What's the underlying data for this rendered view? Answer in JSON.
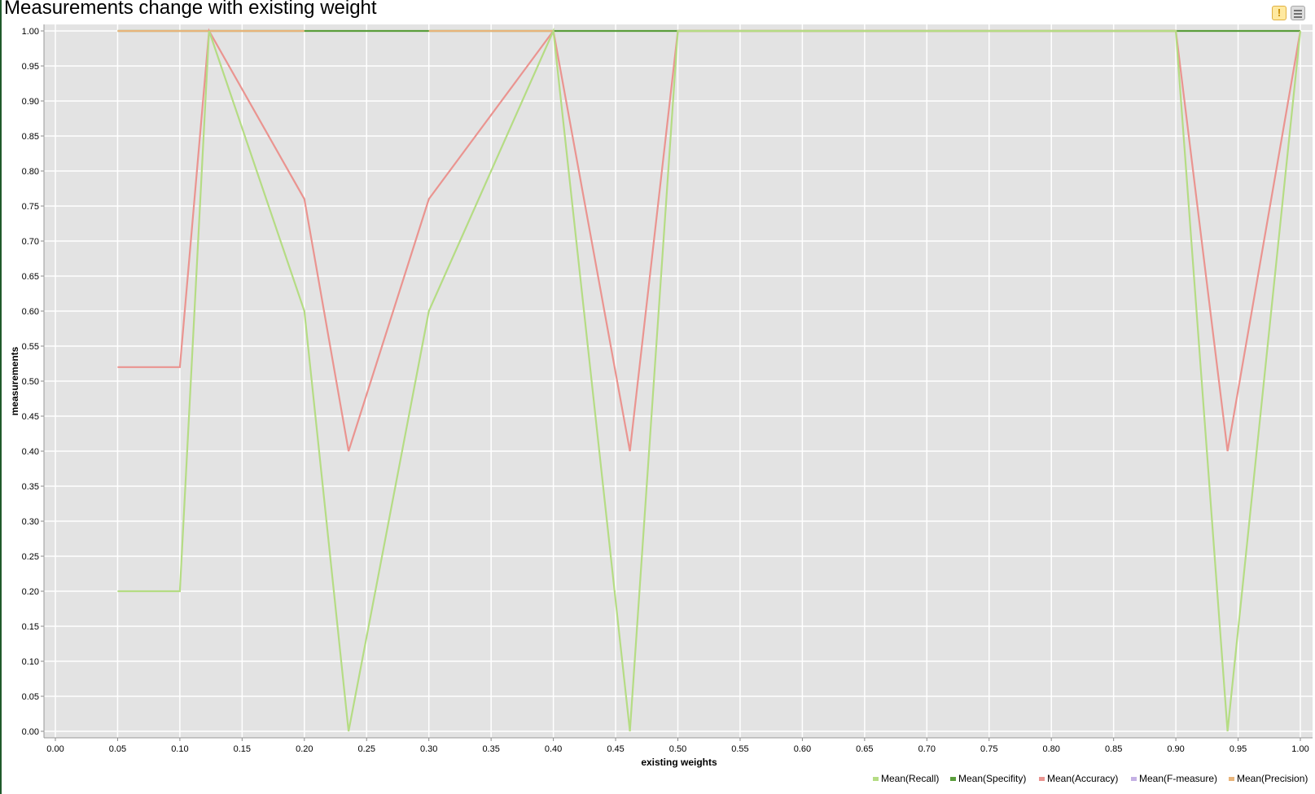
{
  "chart_data": {
    "type": "line",
    "title": "Measurements change with existing weight",
    "xlabel": "existing weights",
    "ylabel": "measurements",
    "xlim": [
      0.0,
      1.0
    ],
    "ylim": [
      0.0,
      1.0
    ],
    "x_ticks": [
      "0.00",
      "0.05",
      "0.10",
      "0.15",
      "0.20",
      "0.25",
      "0.30",
      "0.35",
      "0.40",
      "0.45",
      "0.50",
      "0.55",
      "0.60",
      "0.65",
      "0.70",
      "0.75",
      "0.80",
      "0.85",
      "0.90",
      "0.95",
      "1.00"
    ],
    "y_ticks": [
      "0.00",
      "0.05",
      "0.10",
      "0.15",
      "0.20",
      "0.25",
      "0.30",
      "0.35",
      "0.40",
      "0.45",
      "0.50",
      "0.55",
      "0.60",
      "0.65",
      "0.70",
      "0.75",
      "0.80",
      "0.85",
      "0.90",
      "0.95",
      "1.00"
    ],
    "grid": true,
    "legend_position": "bottom-right",
    "series": [
      {
        "name": "Mean(Recall)",
        "color": "#b5dc84",
        "points": [
          [
            0.05,
            0.2
          ],
          [
            0.1,
            0.2
          ],
          [
            0.1235,
            1.0
          ],
          [
            0.2,
            0.6
          ],
          [
            0.2355,
            0.0
          ],
          [
            0.3,
            0.6
          ],
          [
            0.4,
            1.0
          ],
          [
            0.4615,
            0.0
          ],
          [
            0.5,
            1.0
          ],
          [
            0.9,
            1.0
          ],
          [
            0.9415,
            0.0
          ],
          [
            1.0,
            1.0
          ]
        ]
      },
      {
        "name": "Mean(Specifity)",
        "color": "#5b9e3c",
        "points": [
          [
            0.05,
            1.0
          ],
          [
            1.0,
            1.0
          ]
        ]
      },
      {
        "name": "Mean(Accuracy)",
        "color": "#ea9490",
        "points": [
          [
            0.05,
            0.52
          ],
          [
            0.1,
            0.52
          ],
          [
            0.1235,
            1.0
          ],
          [
            0.2,
            0.76
          ],
          [
            0.2355,
            0.4
          ],
          [
            0.3,
            0.76
          ],
          [
            0.4,
            1.0
          ],
          [
            0.4615,
            0.4
          ],
          [
            0.5,
            1.0
          ],
          [
            0.9,
            1.0
          ],
          [
            0.9415,
            0.4
          ],
          [
            1.0,
            1.0
          ]
        ]
      },
      {
        "name": "Mean(F-measure)",
        "color": "#c4b0e4",
        "points": []
      },
      {
        "name": "Mean(Precision)",
        "color": "#e8b47a",
        "points": [
          [
            0.05,
            1.0
          ],
          [
            0.2,
            1.0
          ]
        ],
        "segments": [
          [
            [
              0.05,
              1.0
            ],
            [
              0.2,
              1.0
            ]
          ],
          [
            [
              0.3,
              1.0
            ],
            [
              0.4,
              1.0
            ]
          ],
          [
            [
              0.5,
              1.0
            ],
            [
              0.9,
              1.0
            ]
          ]
        ]
      }
    ]
  },
  "toolbar": {
    "warning_symbol": "!"
  }
}
